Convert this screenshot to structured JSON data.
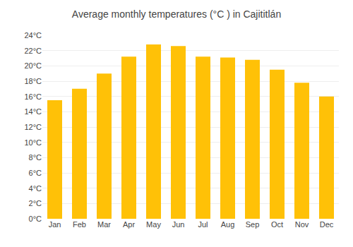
{
  "chart_data": {
    "type": "bar",
    "title": "Average monthly temperatures (°C ) in Cajititlán",
    "categories": [
      "Jan",
      "Feb",
      "Mar",
      "Apr",
      "May",
      "Jun",
      "Jul",
      "Aug",
      "Sep",
      "Oct",
      "Nov",
      "Dec"
    ],
    "values": [
      15.5,
      17.0,
      19.0,
      21.2,
      22.8,
      22.6,
      21.2,
      21.1,
      20.8,
      19.5,
      17.8,
      16.0
    ],
    "color": "#FFC107",
    "ylim": [
      0,
      24
    ],
    "yticks": [
      {
        "value": 0,
        "label": "0°C"
      },
      {
        "value": 2,
        "label": "2°C"
      },
      {
        "value": 4,
        "label": "4°C"
      },
      {
        "value": 6,
        "label": "6°C"
      },
      {
        "value": 8,
        "label": "8°C"
      },
      {
        "value": 10,
        "label": "10°C"
      },
      {
        "value": 12,
        "label": "12°C"
      },
      {
        "value": 14,
        "label": "14°C"
      },
      {
        "value": 16,
        "label": "16°C"
      },
      {
        "value": 18,
        "label": "18°C"
      },
      {
        "value": 20,
        "label": "20°C"
      },
      {
        "value": 22,
        "label": "22°C"
      },
      {
        "value": 24,
        "label": "24°C"
      }
    ],
    "grid": true
  }
}
